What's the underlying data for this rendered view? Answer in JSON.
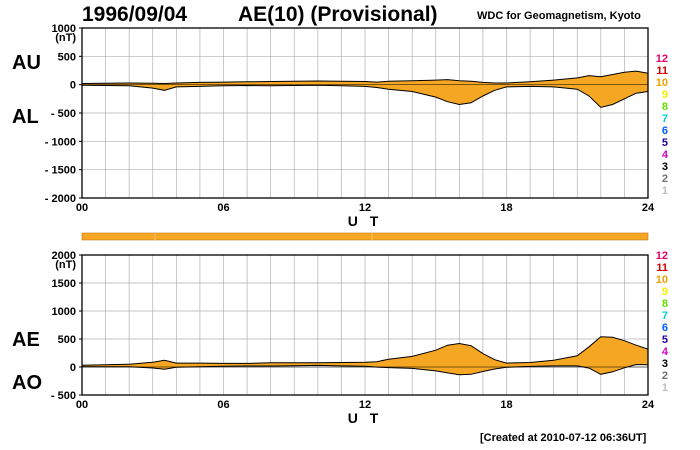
{
  "header": {
    "date": "1996/09/04",
    "title": "AE(10) (Provisional)",
    "source": "WDC for Geomagnetism, Kyoto"
  },
  "footer": {
    "created": "[Created at 2010-07-12 06:36UT]"
  },
  "colors": {
    "fill": "#F5A623",
    "line": "#000000",
    "grid": "#b0b0b0",
    "status_bar": "#F5A623"
  },
  "legend": [
    {
      "label": "12",
      "color": "#e0006a"
    },
    {
      "label": "11",
      "color": "#d40000"
    },
    {
      "label": "10",
      "color": "#f0a000"
    },
    {
      "label": "9",
      "color": "#f0f000"
    },
    {
      "label": "8",
      "color": "#60e000"
    },
    {
      "label": "7",
      "color": "#00d0d0"
    },
    {
      "label": "6",
      "color": "#0060ff"
    },
    {
      "label": "5",
      "color": "#2000a0"
    },
    {
      "label": "4",
      "color": "#d000d0"
    },
    {
      "label": "3",
      "color": "#000000"
    },
    {
      "label": "2",
      "color": "#707070"
    },
    {
      "label": "1",
      "color": "#c0c0c0"
    }
  ],
  "chart_data": [
    {
      "type": "area",
      "name": "AU/AL",
      "labels_left": [
        "AU",
        "AL"
      ],
      "unit": "(nT)",
      "xlabel": "U T",
      "xlim": [
        0,
        24
      ],
      "ylim": [
        -2000,
        1000
      ],
      "x_ticks": [
        {
          "label": "00",
          "value": 0
        },
        {
          "label": "06",
          "value": 6
        },
        {
          "label": "12",
          "value": 12
        },
        {
          "label": "18",
          "value": 18
        },
        {
          "label": "24",
          "value": 24
        }
      ],
      "y_ticks": [
        {
          "label": "1000",
          "value": 1000
        },
        {
          "label": "500",
          "value": 500
        },
        {
          "label": "0",
          "value": 0
        },
        {
          "label": "- 500",
          "value": -500
        },
        {
          "label": "- 1000",
          "value": -1000
        },
        {
          "label": "- 1500",
          "value": -1500
        },
        {
          "label": "- 2000",
          "value": -2000
        }
      ],
      "grid": true,
      "x": [
        0,
        1,
        2,
        3,
        3.5,
        4,
        5,
        6,
        7,
        8,
        9,
        10,
        11,
        12,
        12.5,
        13,
        14,
        15,
        15.5,
        16,
        16.5,
        17,
        17.5,
        18,
        19,
        20,
        21,
        21.5,
        22,
        22.5,
        23,
        23.5,
        24
      ],
      "series": [
        {
          "name": "AU",
          "values": [
            20,
            25,
            30,
            25,
            20,
            30,
            40,
            45,
            50,
            55,
            60,
            65,
            60,
            55,
            45,
            60,
            70,
            80,
            90,
            70,
            60,
            40,
            30,
            30,
            50,
            80,
            120,
            160,
            140,
            180,
            220,
            240,
            200
          ]
        },
        {
          "name": "AL",
          "values": [
            -10,
            -15,
            -20,
            -60,
            -100,
            -40,
            -30,
            -20,
            -15,
            -20,
            -15,
            -10,
            -20,
            -30,
            -50,
            -80,
            -120,
            -220,
            -300,
            -350,
            -320,
            -200,
            -100,
            -40,
            -30,
            -40,
            -80,
            -200,
            -400,
            -350,
            -250,
            -150,
            -120
          ]
        }
      ]
    },
    {
      "type": "area",
      "name": "AE/AO",
      "labels_left": [
        "AE",
        "AO"
      ],
      "unit": "(nT)",
      "xlabel": "U T",
      "xlim": [
        0,
        24
      ],
      "ylim": [
        -500,
        2000
      ],
      "x_ticks": [
        {
          "label": "00",
          "value": 0
        },
        {
          "label": "06",
          "value": 6
        },
        {
          "label": "12",
          "value": 12
        },
        {
          "label": "18",
          "value": 18
        },
        {
          "label": "24",
          "value": 24
        }
      ],
      "y_ticks": [
        {
          "label": "2000",
          "value": 2000
        },
        {
          "label": "1500",
          "value": 1500
        },
        {
          "label": "1000",
          "value": 1000
        },
        {
          "label": "500",
          "value": 500
        },
        {
          "label": "0",
          "value": 0
        },
        {
          "label": "- 500",
          "value": -500
        }
      ],
      "grid": true,
      "x": [
        0,
        1,
        2,
        3,
        3.5,
        4,
        5,
        6,
        7,
        8,
        9,
        10,
        11,
        12,
        12.5,
        13,
        14,
        15,
        15.5,
        16,
        16.5,
        17,
        17.5,
        18,
        19,
        20,
        21,
        21.5,
        22,
        22.5,
        23,
        23.5,
        24
      ],
      "series": [
        {
          "name": "AE",
          "values": [
            30,
            40,
            50,
            85,
            120,
            70,
            70,
            65,
            65,
            75,
            75,
            75,
            80,
            85,
            95,
            140,
            190,
            300,
            390,
            420,
            380,
            240,
            130,
            70,
            80,
            120,
            200,
            360,
            540,
            530,
            470,
            390,
            320
          ]
        },
        {
          "name": "AO",
          "values": [
            5,
            5,
            5,
            -18,
            -40,
            -5,
            5,
            12,
            18,
            18,
            22,
            28,
            20,
            12,
            -2,
            -10,
            -25,
            -70,
            -105,
            -140,
            -130,
            -80,
            -35,
            -5,
            10,
            20,
            20,
            -20,
            -130,
            -85,
            -15,
            45,
            40
          ]
        }
      ]
    }
  ]
}
